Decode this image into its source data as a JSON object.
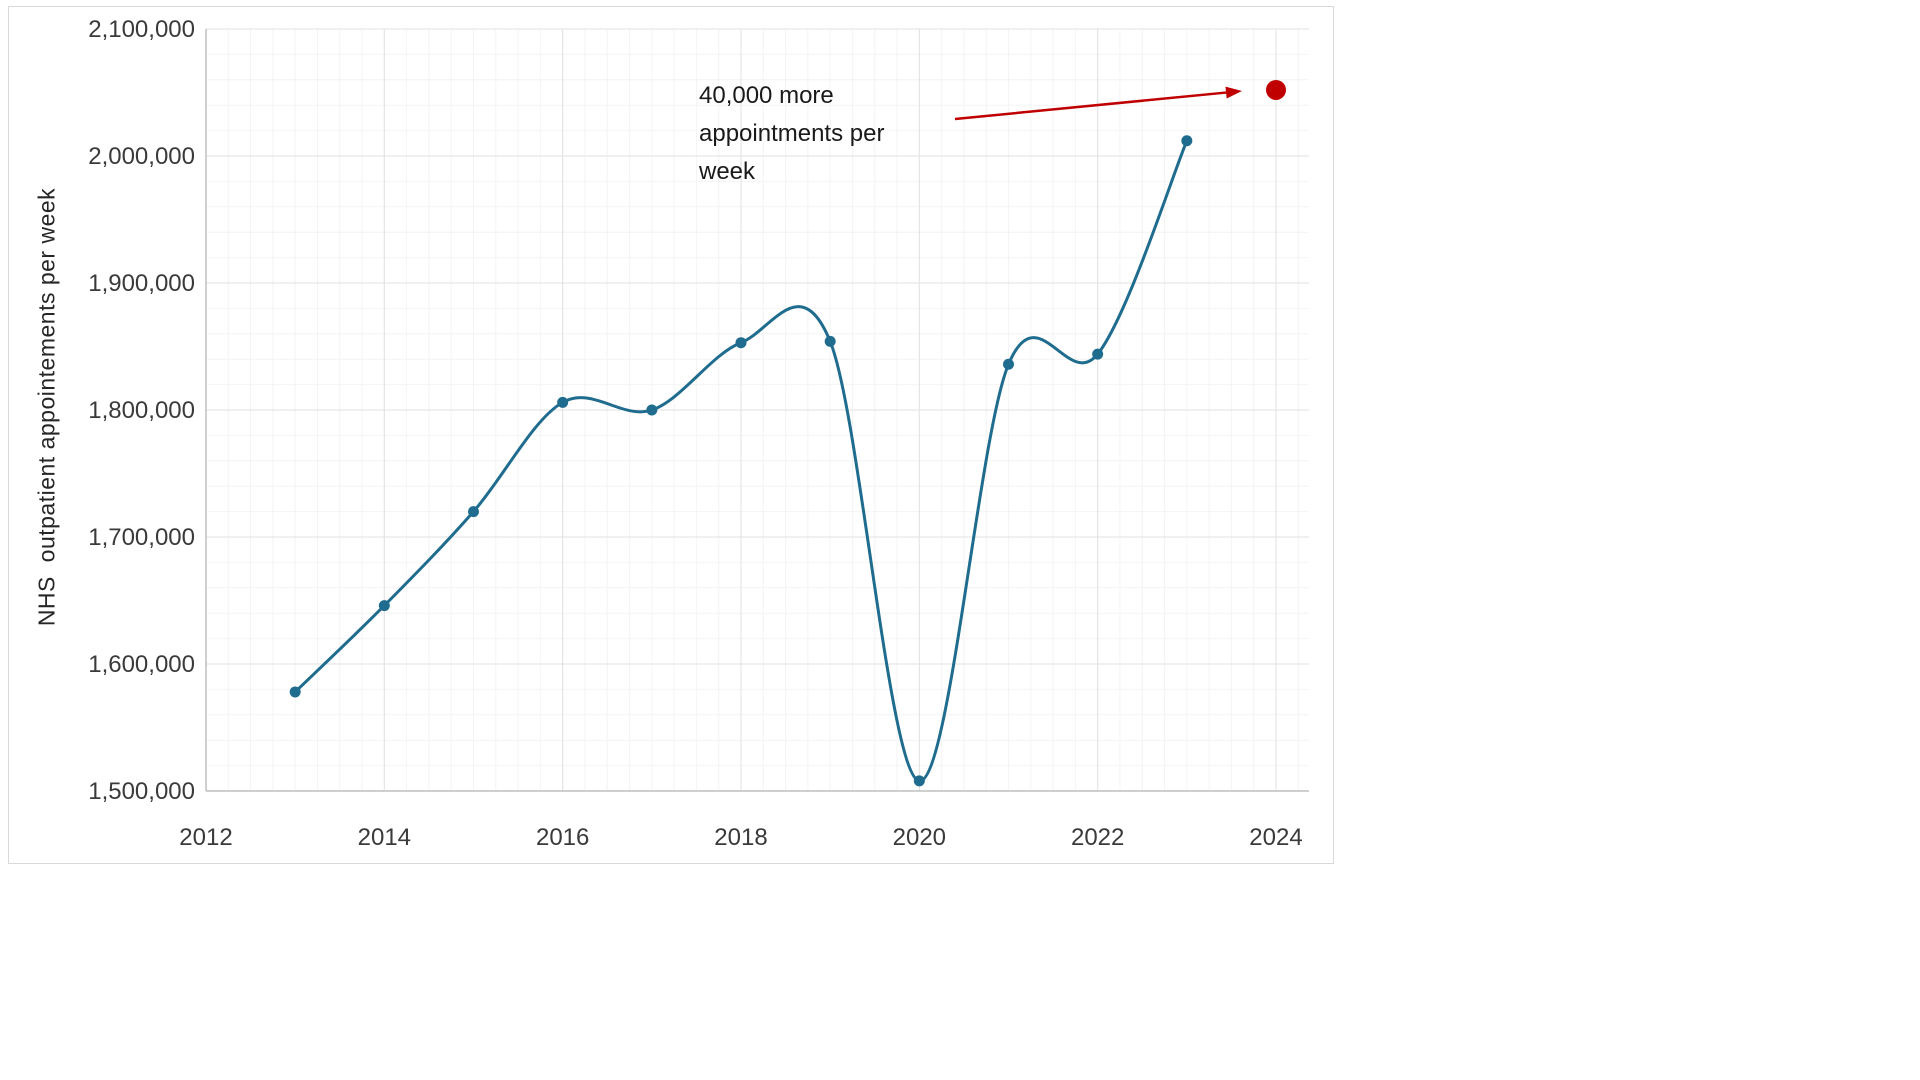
{
  "chart_data": {
    "type": "line",
    "title": "",
    "xlabel": "",
    "ylabel": "NHS  outpatient appointements per week",
    "xlim": [
      2012,
      2024
    ],
    "ylim": [
      1500000,
      2100000
    ],
    "grid": "major+minor",
    "legend": "none",
    "x_ticks": [
      2012,
      2014,
      2016,
      2018,
      2020,
      2022,
      2024
    ],
    "x_tick_labels": [
      "2012",
      "2014",
      "2016",
      "2018",
      "2020",
      "2022",
      "2024"
    ],
    "y_ticks": [
      1500000,
      1600000,
      1700000,
      1800000,
      1900000,
      2000000,
      2100000
    ],
    "y_tick_labels": [
      "1,500,000",
      "1,600,000",
      "1,700,000",
      "1,800,000",
      "1,900,000",
      "2,000,000",
      "2,100,000"
    ],
    "series": [
      {
        "name": "NHS outpatient appointments per week",
        "color": "#1f6c8f",
        "smooth": true,
        "markers": true,
        "x": [
          2013,
          2014,
          2015,
          2016,
          2017,
          2018,
          2019,
          2020,
          2021,
          2022,
          2023
        ],
        "values": [
          1578000,
          1646000,
          1720000,
          1806000,
          1800000,
          1853000,
          1854000,
          1508000,
          1836000,
          1844000,
          2012000
        ]
      }
    ],
    "highlight_point": {
      "x": 2024,
      "value": 2052000,
      "color": "#c00000"
    },
    "annotation": {
      "text": "40,000 more appointments per week",
      "color": "#1a1a1a",
      "arrow_color": "#c00000"
    }
  },
  "style_colors": {
    "axis": "#bfbfbf",
    "major_grid": "#e2e2e2",
    "minor_grid": "#f4f4f4",
    "tick_text": "#3a3a3a"
  }
}
